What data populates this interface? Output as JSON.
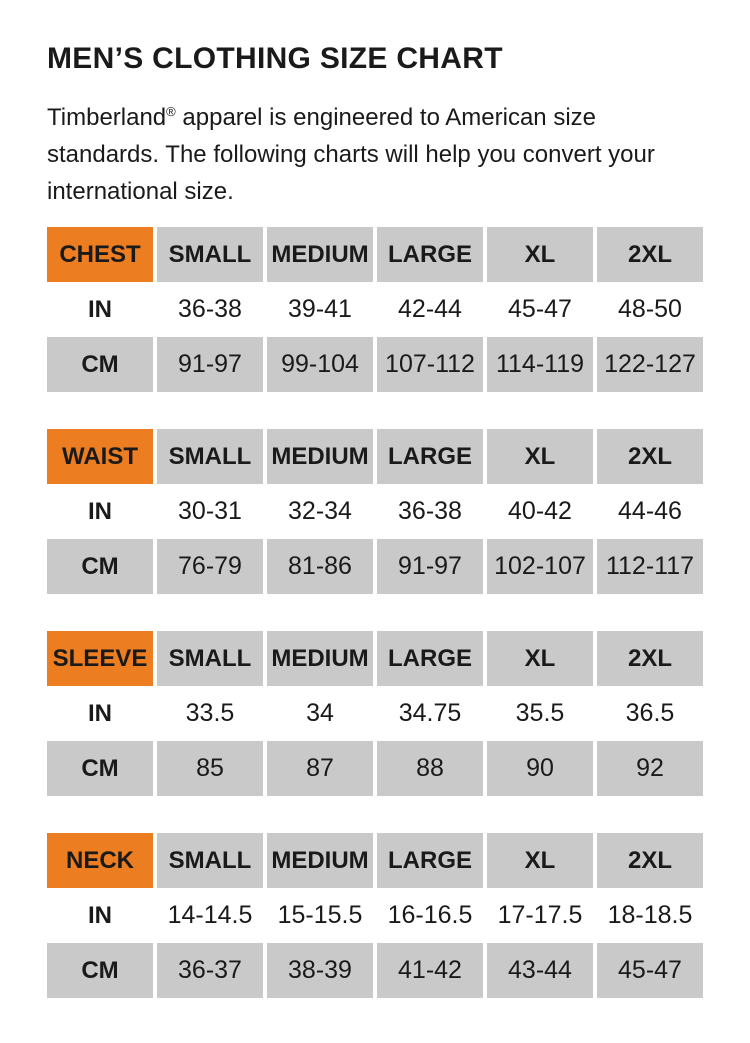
{
  "colors": {
    "accent_orange": "#ED7D21",
    "cell_gray": "#C9C9C9",
    "text_black": "#1A1A1A",
    "background": "#FFFFFF"
  },
  "header": {
    "title": "MEN’S CLOTHING SIZE CHART",
    "intro_brand": "Timberland",
    "intro_reg_mark": "®",
    "intro_text": " apparel is engineered to American size standards. The following charts will help you convert your international size."
  },
  "size_labels": [
    "SMALL",
    "MEDIUM",
    "LARGE",
    "XL",
    "2XL"
  ],
  "units": {
    "inches": "IN",
    "centimeters": "CM"
  },
  "tables": [
    {
      "name": "CHEST",
      "in": [
        "36-38",
        "39-41",
        "42-44",
        "45-47",
        "48-50"
      ],
      "cm": [
        "91-97",
        "99-104",
        "107-112",
        "114-119",
        "122-127"
      ]
    },
    {
      "name": "WAIST",
      "in": [
        "30-31",
        "32-34",
        "36-38",
        "40-42",
        "44-46"
      ],
      "cm": [
        "76-79",
        "81-86",
        "91-97",
        "102-107",
        "112-117"
      ]
    },
    {
      "name": "SLEEVE",
      "in": [
        "33.5",
        "34",
        "34.75",
        "35.5",
        "36.5"
      ],
      "cm": [
        "85",
        "87",
        "88",
        "90",
        "92"
      ]
    },
    {
      "name": "NECK",
      "in": [
        "14-14.5",
        "15-15.5",
        "16-16.5",
        "17-17.5",
        "18-18.5"
      ],
      "cm": [
        "36-37",
        "38-39",
        "41-42",
        "43-44",
        "45-47"
      ]
    }
  ]
}
